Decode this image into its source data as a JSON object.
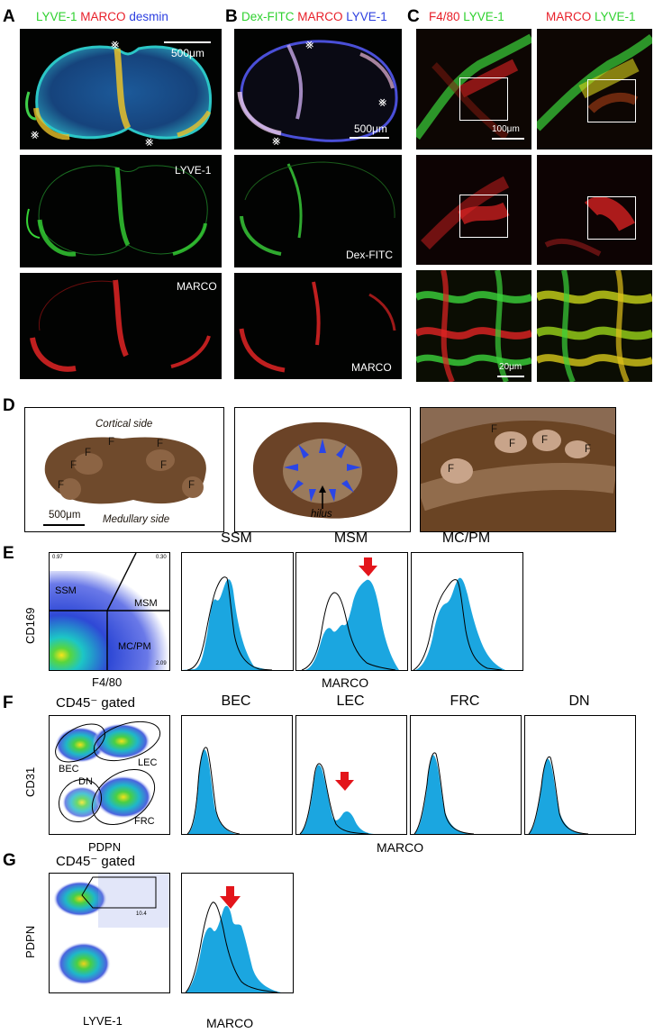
{
  "panels": {
    "A": {
      "label": "A",
      "title_parts": [
        {
          "text": "LYVE-1",
          "color": "#2fd12f"
        },
        {
          "text": "MARCO",
          "color": "#e8202a"
        },
        {
          "text": "desmin",
          "color": "#2c3fe0"
        }
      ],
      "scale_label": "500μm",
      "row2_label": "LYVE-1",
      "row3_label": "MARCO"
    },
    "B": {
      "label": "B",
      "title_parts": [
        {
          "text": "Dex-FITC",
          "color": "#2fd12f"
        },
        {
          "text": "MARCO",
          "color": "#e8202a"
        },
        {
          "text": "LYVE-1",
          "color": "#2c3fe0"
        }
      ],
      "scale_label": "500μm",
      "row2_label": "Dex-FITC",
      "row3_label": "MARCO"
    },
    "C": {
      "label": "C",
      "col1_title": [
        {
          "text": "F4/80",
          "color": "#e8202a"
        },
        {
          "text": "LYVE-1",
          "color": "#2fd12f"
        }
      ],
      "col2_title": [
        {
          "text": "MARCO",
          "color": "#e8202a"
        },
        {
          "text": "LYVE-1",
          "color": "#2fd12f"
        }
      ],
      "scale_top": "100μm",
      "scale_bottom": "20μm"
    },
    "D": {
      "label": "D",
      "cortical": "Cortical side",
      "medullary": "Medullary side",
      "scale": "500μm",
      "hilus": "hilus",
      "follicle": "F"
    },
    "E": {
      "label": "E",
      "dot": {
        "ylabel": "CD169",
        "xlabel": "F4/80",
        "gates": [
          "SSM",
          "MSM",
          "MC/PM"
        ],
        "pct_tl": "0.97",
        "pct_tr": "0.30",
        "pct_br": "2.09"
      },
      "hist_titles": [
        "SSM",
        "MSM",
        "MC/PM"
      ],
      "xlabel": "MARCO"
    },
    "F": {
      "label": "F",
      "dot": {
        "title": "CD45⁻ gated",
        "ylabel": "CD31",
        "xlabel": "PDPN",
        "gates": [
          "BEC",
          "LEC",
          "DN",
          "FRC"
        ]
      },
      "hist_titles": [
        "BEC",
        "LEC",
        "FRC",
        "DN"
      ],
      "xlabel": "MARCO"
    },
    "G": {
      "label": "G",
      "dot": {
        "title": "CD45⁻ gated",
        "ylabel": "PDPN",
        "xlabel": "LYVE-1",
        "pct": "10.4"
      },
      "xlabel": "MARCO"
    }
  },
  "colors": {
    "hist_fill": "#1ba6e0",
    "arrow": "#e3151b",
    "blue_arrow": "#2a45e6",
    "green": "#2fd12f",
    "red": "#e8202a"
  }
}
